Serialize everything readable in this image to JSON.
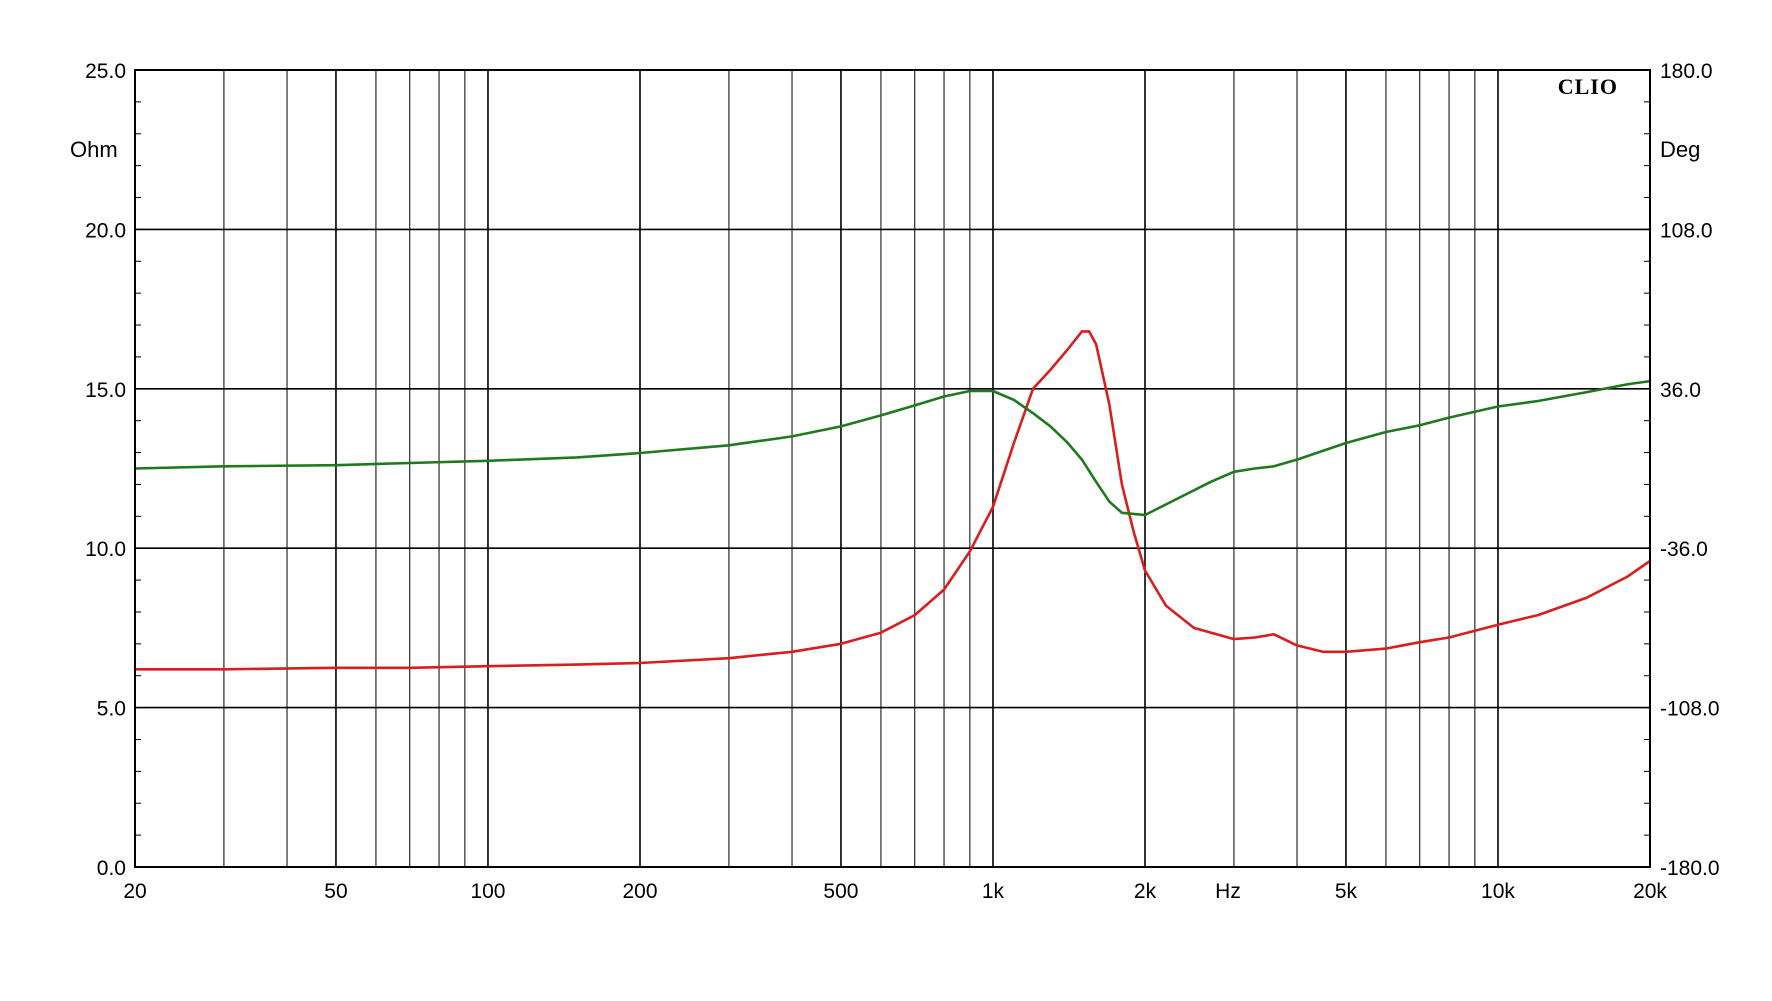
{
  "chart_data": {
    "type": "line",
    "title": "",
    "brand": "CLIO",
    "x_scale": "log",
    "xlim": [
      20,
      20000
    ],
    "ylim_left": [
      0,
      25
    ],
    "ylim_right": [
      -180,
      180
    ],
    "ylabel_left": "Ohm",
    "ylabel_right": "Deg",
    "xlabel": "Hz",
    "grid": true,
    "x_ticks": [
      {
        "value": 20,
        "label": "20"
      },
      {
        "value": 50,
        "label": "50"
      },
      {
        "value": 100,
        "label": "100"
      },
      {
        "value": 200,
        "label": "200"
      },
      {
        "value": 500,
        "label": "500"
      },
      {
        "value": 1000,
        "label": "1k"
      },
      {
        "value": 2000,
        "label": "2k"
      },
      {
        "value": 5000,
        "label": "5k"
      },
      {
        "value": 10000,
        "label": "10k"
      },
      {
        "value": 20000,
        "label": "20k"
      }
    ],
    "y_ticks_left": [
      "0.0",
      "5.0",
      "10.0",
      "15.0",
      "20.0",
      "25.0"
    ],
    "y_ticks_right": [
      "-180.0",
      "-108.0",
      "-36.0",
      "36.0",
      "108.0",
      "180.0"
    ],
    "series": [
      {
        "axis": "left",
        "color": "#d81e1e",
        "points": [
          [
            20,
            6.2
          ],
          [
            30,
            6.2
          ],
          [
            50,
            6.25
          ],
          [
            70,
            6.25
          ],
          [
            100,
            6.3
          ],
          [
            150,
            6.35
          ],
          [
            200,
            6.4
          ],
          [
            300,
            6.55
          ],
          [
            400,
            6.75
          ],
          [
            500,
            7.0
          ],
          [
            600,
            7.35
          ],
          [
            700,
            7.9
          ],
          [
            800,
            8.7
          ],
          [
            900,
            9.9
          ],
          [
            1000,
            11.3
          ],
          [
            1100,
            13.3
          ],
          [
            1200,
            15.0
          ],
          [
            1300,
            15.6
          ],
          [
            1400,
            16.2
          ],
          [
            1500,
            16.8
          ],
          [
            1550,
            16.8
          ],
          [
            1600,
            16.4
          ],
          [
            1700,
            14.5
          ],
          [
            1800,
            12.0
          ],
          [
            1900,
            10.5
          ],
          [
            2000,
            9.3
          ],
          [
            2200,
            8.2
          ],
          [
            2500,
            7.5
          ],
          [
            3000,
            7.15
          ],
          [
            3300,
            7.2
          ],
          [
            3600,
            7.3
          ],
          [
            4000,
            6.95
          ],
          [
            4500,
            6.75
          ],
          [
            5000,
            6.75
          ],
          [
            6000,
            6.85
          ],
          [
            7000,
            7.05
          ],
          [
            8000,
            7.2
          ],
          [
            10000,
            7.6
          ],
          [
            12000,
            7.9
          ],
          [
            15000,
            8.45
          ],
          [
            18000,
            9.1
          ],
          [
            20000,
            9.6
          ]
        ]
      },
      {
        "axis": "right",
        "color": "#1f7a1f",
        "points": [
          [
            20,
            0
          ],
          [
            30,
            1
          ],
          [
            50,
            1.5
          ],
          [
            70,
            2.5
          ],
          [
            100,
            3.5
          ],
          [
            150,
            5
          ],
          [
            200,
            7
          ],
          [
            300,
            10.5
          ],
          [
            400,
            14.5
          ],
          [
            500,
            19
          ],
          [
            600,
            24
          ],
          [
            700,
            28.5
          ],
          [
            800,
            32.5
          ],
          [
            900,
            35
          ],
          [
            1000,
            35
          ],
          [
            1100,
            31
          ],
          [
            1200,
            25
          ],
          [
            1300,
            19
          ],
          [
            1400,
            12
          ],
          [
            1500,
            4
          ],
          [
            1600,
            -6
          ],
          [
            1700,
            -15
          ],
          [
            1800,
            -20
          ],
          [
            2000,
            -21
          ],
          [
            2300,
            -14
          ],
          [
            2700,
            -6
          ],
          [
            3000,
            -1.5
          ],
          [
            3300,
            0
          ],
          [
            3600,
            1
          ],
          [
            4000,
            4
          ],
          [
            5000,
            11.5
          ],
          [
            6000,
            16.5
          ],
          [
            7000,
            19.5
          ],
          [
            8000,
            23
          ],
          [
            10000,
            28
          ],
          [
            12000,
            30.5
          ],
          [
            15000,
            34.5
          ],
          [
            18000,
            38
          ],
          [
            20000,
            39.5
          ]
        ]
      }
    ]
  }
}
